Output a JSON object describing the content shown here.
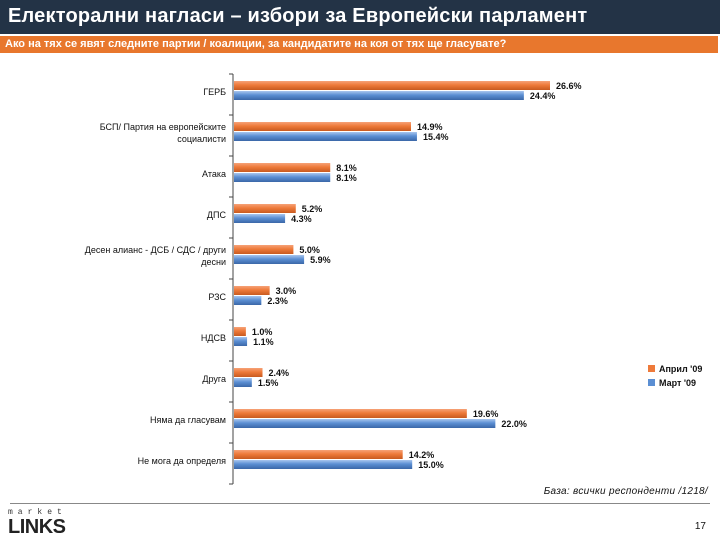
{
  "header": {
    "title": "Електорални нагласи – избори за Европейски парламент",
    "question": "Ако на тях се явят следните партии / коалиции, за кандидатите на коя от тях ще гласувате?"
  },
  "chart_data": {
    "type": "bar",
    "orientation": "horizontal",
    "title": "Ако на тях се явят следните партии / коалиции, за кандидатите на коя от тях ще гласувате?",
    "categories": [
      [
        "ГЕРБ"
      ],
      [
        "БСП/ Партия на европейските",
        "социалисти"
      ],
      [
        "Атака"
      ],
      [
        "ДПС"
      ],
      [
        "Десен алианс - ДСБ / СДС / други",
        "десни"
      ],
      [
        "РЗС"
      ],
      [
        "НДСВ"
      ],
      [
        "Друга"
      ],
      [
        "Няма да гласувам"
      ],
      [
        "Не мога да определя"
      ]
    ],
    "series": [
      {
        "name": "Април '09",
        "color": "#ee7a3a",
        "values": [
          26.6,
          14.9,
          8.1,
          5.2,
          5.0,
          3.0,
          1.0,
          2.4,
          19.6,
          14.2
        ]
      },
      {
        "name": "Март '09",
        "color": "#5b8fd3",
        "values": [
          24.4,
          15.4,
          8.1,
          4.3,
          5.9,
          2.3,
          1.1,
          1.5,
          22.0,
          15.0
        ]
      }
    ],
    "xlim": [
      0,
      30
    ],
    "value_suffix": "%",
    "legend": "right"
  },
  "footer": {
    "base_note": "База: всички респонденти /1218/",
    "logo_small": "market",
    "logo_main": "LINKS",
    "page_number": "17"
  }
}
